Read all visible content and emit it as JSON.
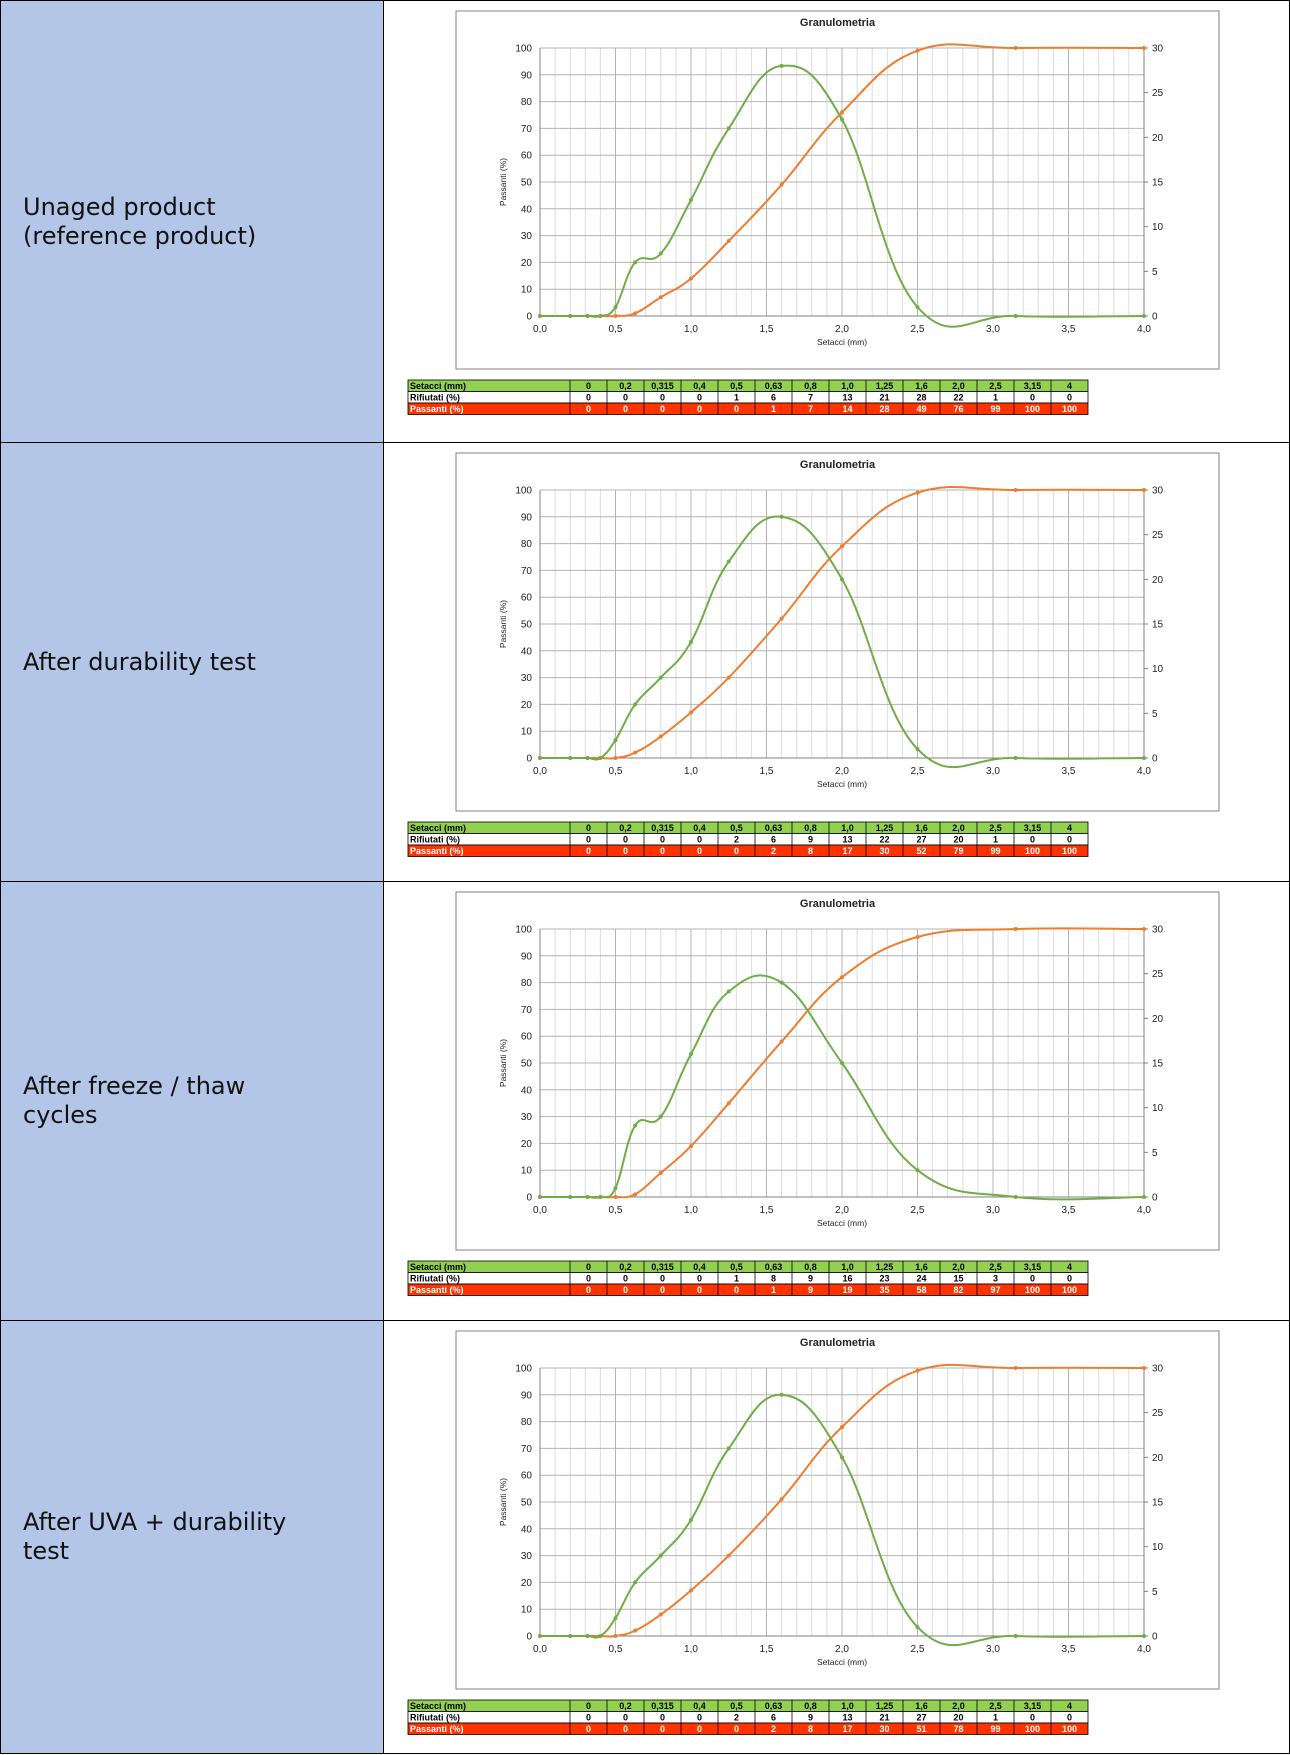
{
  "rows": [
    {
      "label": "Unaged product (reference product)",
      "chart_data": {
        "type": "line",
        "title": "Granulometria",
        "xlabel": "Setacci (mm)",
        "ylabel": "Passanti (%)",
        "xlim": [
          0,
          4
        ],
        "ylim": [
          0,
          100
        ],
        "y2lim": [
          0,
          30
        ],
        "x_ticks": [
          "0,0",
          "0,5",
          "1,0",
          "1,5",
          "2,0",
          "2,5",
          "3,0",
          "3,5",
          "4,0"
        ],
        "y_ticks": [
          "0",
          "10",
          "20",
          "30",
          "40",
          "50",
          "60",
          "70",
          "80",
          "90",
          "100"
        ],
        "y2_ticks": [
          "0",
          "5",
          "10",
          "15",
          "20",
          "25",
          "30"
        ],
        "series": [
          {
            "axis": "left",
            "color": "#ed7d31",
            "x": [
              0,
              0.2,
              0.315,
              0.4,
              0.5,
              0.63,
              0.8,
              1.0,
              1.25,
              1.6,
              2.0,
              2.5,
              3.15,
              4.0
            ],
            "y": [
              0,
              0,
              0,
              0,
              0,
              1,
              7,
              14,
              28,
              49,
              76,
              99,
              100,
              100
            ]
          },
          {
            "axis": "right",
            "color": "#70ad47",
            "x": [
              0,
              0.2,
              0.315,
              0.4,
              0.5,
              0.63,
              0.8,
              1.0,
              1.25,
              1.6,
              2.0,
              2.5,
              3.15,
              4.0
            ],
            "y": [
              0,
              0,
              0,
              0,
              1,
              6,
              7,
              13,
              21,
              28,
              22,
              1,
              0,
              0
            ]
          }
        ],
        "table": {
          "headers": [
            "Setacci (mm)",
            "Rifiutati (%)",
            "Passanti (%)"
          ],
          "sieves": [
            "0",
            "0,2",
            "0,315",
            "0,4",
            "0,5",
            "0,63",
            "0,8",
            "1,0",
            "1,25",
            "1,6",
            "2,0",
            "2,5",
            "3,15",
            "4"
          ],
          "rifiutati": [
            "0",
            "0",
            "0",
            "0",
            "1",
            "6",
            "7",
            "13",
            "21",
            "28",
            "22",
            "1",
            "0",
            "0"
          ],
          "passanti": [
            "0",
            "0",
            "0",
            "0",
            "0",
            "1",
            "7",
            "14",
            "28",
            "49",
            "76",
            "99",
            "100",
            "100"
          ]
        }
      }
    },
    {
      "label": "After durability test",
      "chart_data": {
        "type": "line",
        "title": "Granulometria",
        "xlabel": "Setacci (mm)",
        "ylabel": "Passanti (%)",
        "xlim": [
          0,
          4
        ],
        "ylim": [
          0,
          100
        ],
        "y2lim": [
          0,
          30
        ],
        "x_ticks": [
          "0,0",
          "0,5",
          "1,0",
          "1,5",
          "2,0",
          "2,5",
          "3,0",
          "3,5",
          "4,0"
        ],
        "y_ticks": [
          "0",
          "10",
          "20",
          "30",
          "40",
          "50",
          "60",
          "70",
          "80",
          "90",
          "100"
        ],
        "y2_ticks": [
          "0",
          "5",
          "10",
          "15",
          "20",
          "25",
          "30"
        ],
        "series": [
          {
            "axis": "left",
            "color": "#ed7d31",
            "x": [
              0,
              0.2,
              0.315,
              0.4,
              0.5,
              0.63,
              0.8,
              1.0,
              1.25,
              1.6,
              2.0,
              2.5,
              3.15,
              4.0
            ],
            "y": [
              0,
              0,
              0,
              0,
              0,
              2,
              8,
              17,
              30,
              52,
              79,
              99,
              100,
              100
            ]
          },
          {
            "axis": "right",
            "color": "#70ad47",
            "x": [
              0,
              0.2,
              0.315,
              0.4,
              0.5,
              0.63,
              0.8,
              1.0,
              1.25,
              1.6,
              2.0,
              2.5,
              3.15,
              4.0
            ],
            "y": [
              0,
              0,
              0,
              0,
              2,
              6,
              9,
              13,
              22,
              27,
              20,
              1,
              0,
              0
            ]
          }
        ],
        "table": {
          "headers": [
            "Setacci (mm)",
            "Rifiutati (%)",
            "Passanti (%)"
          ],
          "sieves": [
            "0",
            "0,2",
            "0,315",
            "0,4",
            "0,5",
            "0,63",
            "0,8",
            "1,0",
            "1,25",
            "1,6",
            "2,0",
            "2,5",
            "3,15",
            "4"
          ],
          "rifiutati": [
            "0",
            "0",
            "0",
            "0",
            "2",
            "6",
            "9",
            "13",
            "22",
            "27",
            "20",
            "1",
            "0",
            "0"
          ],
          "passanti": [
            "0",
            "0",
            "0",
            "0",
            "0",
            "2",
            "8",
            "17",
            "30",
            "52",
            "79",
            "99",
            "100",
            "100"
          ]
        }
      }
    },
    {
      "label": "After freeze / thaw cycles",
      "chart_data": {
        "type": "line",
        "title": "Granulometria",
        "xlabel": "Setacci (mm)",
        "ylabel": "Passanti (%)",
        "xlim": [
          0,
          4
        ],
        "ylim": [
          0,
          100
        ],
        "y2lim": [
          0,
          30
        ],
        "x_ticks": [
          "0,0",
          "0,5",
          "1,0",
          "1,5",
          "2,0",
          "2,5",
          "3,0",
          "3,5",
          "4,0"
        ],
        "y_ticks": [
          "0",
          "10",
          "20",
          "30",
          "40",
          "50",
          "60",
          "70",
          "80",
          "90",
          "100"
        ],
        "y2_ticks": [
          "0",
          "5",
          "10",
          "15",
          "20",
          "25",
          "30"
        ],
        "series": [
          {
            "axis": "left",
            "color": "#ed7d31",
            "x": [
              0,
              0.2,
              0.315,
              0.4,
              0.5,
              0.63,
              0.8,
              1.0,
              1.25,
              1.6,
              2.0,
              2.5,
              3.15,
              4.0
            ],
            "y": [
              0,
              0,
              0,
              0,
              0,
              1,
              9,
              19,
              35,
              58,
              82,
              97,
              100,
              100
            ]
          },
          {
            "axis": "right",
            "color": "#70ad47",
            "x": [
              0,
              0.2,
              0.315,
              0.4,
              0.5,
              0.63,
              0.8,
              1.0,
              1.25,
              1.6,
              2.0,
              2.5,
              3.15,
              4.0
            ],
            "y": [
              0,
              0,
              0,
              0,
              1,
              8,
              9,
              16,
              23,
              24,
              15,
              3,
              0,
              0
            ]
          }
        ],
        "table": {
          "headers": [
            "Setacci (mm)",
            "Rifiutati (%)",
            "Passanti (%)"
          ],
          "sieves": [
            "0",
            "0,2",
            "0,315",
            "0,4",
            "0,5",
            "0,63",
            "0,8",
            "1,0",
            "1,25",
            "1,6",
            "2,0",
            "2,5",
            "3,15",
            "4"
          ],
          "rifiutati": [
            "0",
            "0",
            "0",
            "0",
            "1",
            "8",
            "9",
            "16",
            "23",
            "24",
            "15",
            "3",
            "0",
            "0"
          ],
          "passanti": [
            "0",
            "0",
            "0",
            "0",
            "0",
            "1",
            "9",
            "19",
            "35",
            "58",
            "82",
            "97",
            "100",
            "100"
          ]
        }
      }
    },
    {
      "label": "After UVA + durability test",
      "chart_data": {
        "type": "line",
        "title": "Granulometria",
        "xlabel": "Setacci (mm)",
        "ylabel": "Passanti (%)",
        "xlim": [
          0,
          4
        ],
        "ylim": [
          0,
          100
        ],
        "y2lim": [
          0,
          30
        ],
        "x_ticks": [
          "0,0",
          "0,5",
          "1,0",
          "1,5",
          "2,0",
          "2,5",
          "3,0",
          "3,5",
          "4,0"
        ],
        "y_ticks": [
          "0",
          "10",
          "20",
          "30",
          "40",
          "50",
          "60",
          "70",
          "80",
          "90",
          "100"
        ],
        "y2_ticks": [
          "0",
          "5",
          "10",
          "15",
          "20",
          "25",
          "30"
        ],
        "series": [
          {
            "axis": "left",
            "color": "#ed7d31",
            "x": [
              0,
              0.2,
              0.315,
              0.4,
              0.5,
              0.63,
              0.8,
              1.0,
              1.25,
              1.6,
              2.0,
              2.5,
              3.15,
              4.0
            ],
            "y": [
              0,
              0,
              0,
              0,
              0,
              2,
              8,
              17,
              30,
              51,
              78,
              99,
              100,
              100
            ]
          },
          {
            "axis": "right",
            "color": "#70ad47",
            "x": [
              0,
              0.2,
              0.315,
              0.4,
              0.5,
              0.63,
              0.8,
              1.0,
              1.25,
              1.6,
              2.0,
              2.5,
              3.15,
              4.0
            ],
            "y": [
              0,
              0,
              0,
              0,
              2,
              6,
              9,
              13,
              21,
              27,
              20,
              1,
              0,
              0
            ]
          }
        ],
        "table": {
          "headers": [
            "Setacci (mm)",
            "Rifiutati (%)",
            "Passanti (%)"
          ],
          "sieves": [
            "0",
            "0,2",
            "0,315",
            "0,4",
            "0,5",
            "0,63",
            "0,8",
            "1,0",
            "1,25",
            "1,6",
            "2,0",
            "2,5",
            "3,15",
            "4"
          ],
          "rifiutati": [
            "0",
            "0",
            "0",
            "0",
            "2",
            "6",
            "9",
            "13",
            "21",
            "27",
            "20",
            "1",
            "0",
            "0"
          ],
          "passanti": [
            "0",
            "0",
            "0",
            "0",
            "0",
            "2",
            "8",
            "17",
            "30",
            "51",
            "78",
            "99",
            "100",
            "100"
          ]
        }
      }
    }
  ]
}
